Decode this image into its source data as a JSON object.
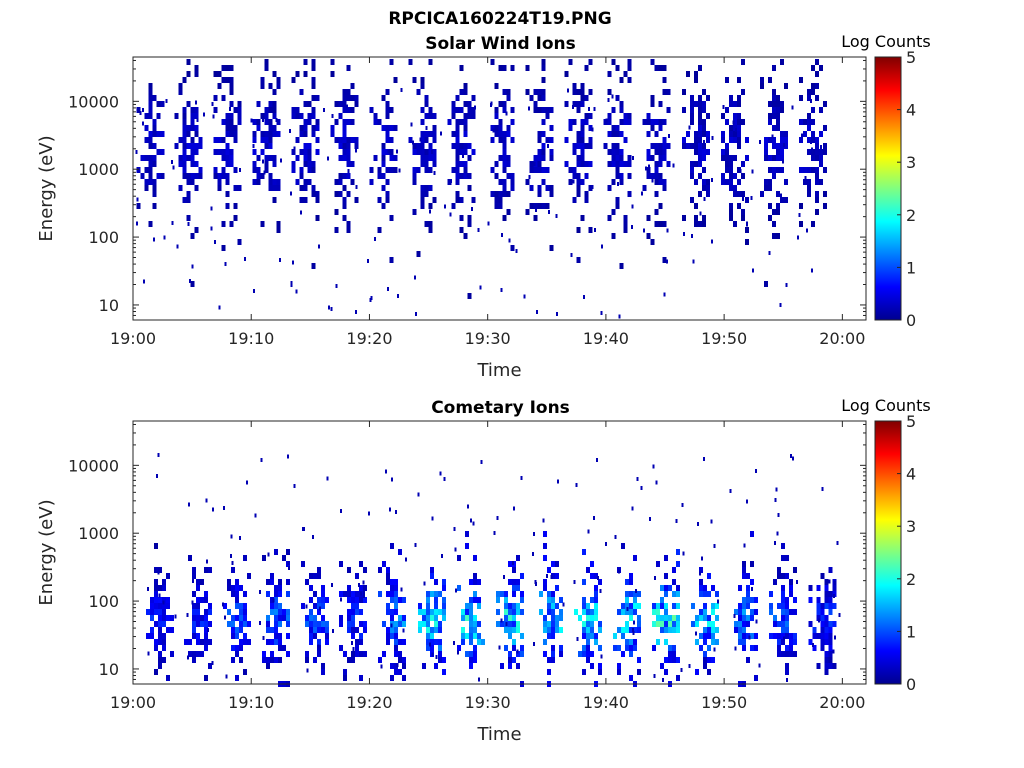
{
  "figure_title": "RPCICA160224T19.PNG",
  "colorscale": [
    "#00008f",
    "#0000ff",
    "#0080ff",
    "#00ffff",
    "#80ff80",
    "#ffff00",
    "#ff8000",
    "#ff0000",
    "#800000"
  ],
  "chart_data": [
    {
      "type": "heatmap",
      "title": "Solar Wind Ions",
      "xlabel": "Time",
      "ylabel": "Energy (eV)",
      "yscale": "log",
      "xlim": [
        "19:00",
        "20:02"
      ],
      "ylim": [
        6,
        45000
      ],
      "xticks": [
        "19:00",
        "19:10",
        "19:20",
        "19:30",
        "19:40",
        "19:50",
        "20:00"
      ],
      "yticks": [
        10,
        100,
        1000,
        10000
      ],
      "ytick_labels": [
        "10",
        "100",
        "1000",
        "10000"
      ],
      "colorbar": {
        "label": "Log Counts",
        "range": [
          0,
          5
        ],
        "ticks": [
          "0",
          "1",
          "2",
          "3",
          "4",
          "5"
        ]
      },
      "grid": false,
      "bursts": [
        {
          "minute": 1.5,
          "peak_energy": 2400,
          "level": 0.3
        },
        {
          "minute": 4.7,
          "peak_energy": 2200,
          "level": 0.3
        },
        {
          "minute": 8.0,
          "peak_energy": 2300,
          "level": 0.3
        },
        {
          "minute": 11.3,
          "peak_energy": 2400,
          "level": 0.3
        },
        {
          "minute": 14.6,
          "peak_energy": 2300,
          "level": 0.3
        },
        {
          "minute": 17.9,
          "peak_energy": 2400,
          "level": 0.3
        },
        {
          "minute": 21.2,
          "peak_energy": 2300,
          "level": 0.3
        },
        {
          "minute": 24.5,
          "peak_energy": 2400,
          "level": 0.3
        },
        {
          "minute": 27.8,
          "peak_energy": 2300,
          "level": 0.3
        },
        {
          "minute": 31.1,
          "peak_energy": 2400,
          "level": 0.3
        },
        {
          "minute": 34.4,
          "peak_energy": 2300,
          "level": 0.3
        },
        {
          "minute": 37.7,
          "peak_energy": 2400,
          "level": 0.3
        },
        {
          "minute": 41.0,
          "peak_energy": 2300,
          "level": 0.3
        },
        {
          "minute": 44.3,
          "peak_energy": 2400,
          "level": 0.3
        },
        {
          "minute": 47.6,
          "peak_energy": 2300,
          "level": 0.3
        },
        {
          "minute": 50.9,
          "peak_energy": 2400,
          "level": 0.3
        },
        {
          "minute": 54.2,
          "peak_energy": 2300,
          "level": 0.3
        },
        {
          "minute": 57.5,
          "peak_energy": 2400,
          "level": 0.3
        }
      ]
    },
    {
      "type": "heatmap",
      "title": "Cometary Ions",
      "xlabel": "Time",
      "ylabel": "Energy (eV)",
      "yscale": "log",
      "xlim": [
        "19:00",
        "20:02"
      ],
      "ylim": [
        6,
        45000
      ],
      "xticks": [
        "19:00",
        "19:10",
        "19:20",
        "19:30",
        "19:40",
        "19:50",
        "20:00"
      ],
      "yticks": [
        10,
        100,
        1000,
        10000
      ],
      "ytick_labels": [
        "10",
        "100",
        "1000",
        "10000"
      ],
      "colorbar": {
        "label": "Log Counts",
        "range": [
          0,
          5
        ],
        "ticks": [
          "0",
          "1",
          "2",
          "3",
          "4",
          "5"
        ]
      },
      "grid": false,
      "bursts": [
        {
          "minute": 2.3,
          "peak_energy": 60,
          "level": 0.6
        },
        {
          "minute": 5.5,
          "peak_energy": 60,
          "level": 0.6
        },
        {
          "minute": 8.8,
          "peak_energy": 60,
          "level": 0.8
        },
        {
          "minute": 12.1,
          "peak_energy": 60,
          "level": 0.9
        },
        {
          "minute": 15.4,
          "peak_energy": 60,
          "level": 0.8
        },
        {
          "minute": 18.6,
          "peak_energy": 60,
          "level": 0.7
        },
        {
          "minute": 21.9,
          "peak_energy": 60,
          "level": 1.0
        },
        {
          "minute": 25.3,
          "peak_energy": 60,
          "level": 1.5
        },
        {
          "minute": 28.6,
          "peak_energy": 60,
          "level": 1.5
        },
        {
          "minute": 31.9,
          "peak_energy": 60,
          "level": 1.5
        },
        {
          "minute": 35.2,
          "peak_energy": 60,
          "level": 1.4
        },
        {
          "minute": 38.5,
          "peak_energy": 60,
          "level": 1.5
        },
        {
          "minute": 41.8,
          "peak_energy": 60,
          "level": 1.4
        },
        {
          "minute": 45.1,
          "peak_energy": 60,
          "level": 1.6
        },
        {
          "minute": 48.4,
          "peak_energy": 60,
          "level": 1.4
        },
        {
          "minute": 51.7,
          "peak_energy": 60,
          "level": 1.0
        },
        {
          "minute": 55.0,
          "peak_energy": 60,
          "level": 0.8
        },
        {
          "minute": 58.3,
          "peak_energy": 60,
          "level": 0.7
        }
      ]
    }
  ]
}
